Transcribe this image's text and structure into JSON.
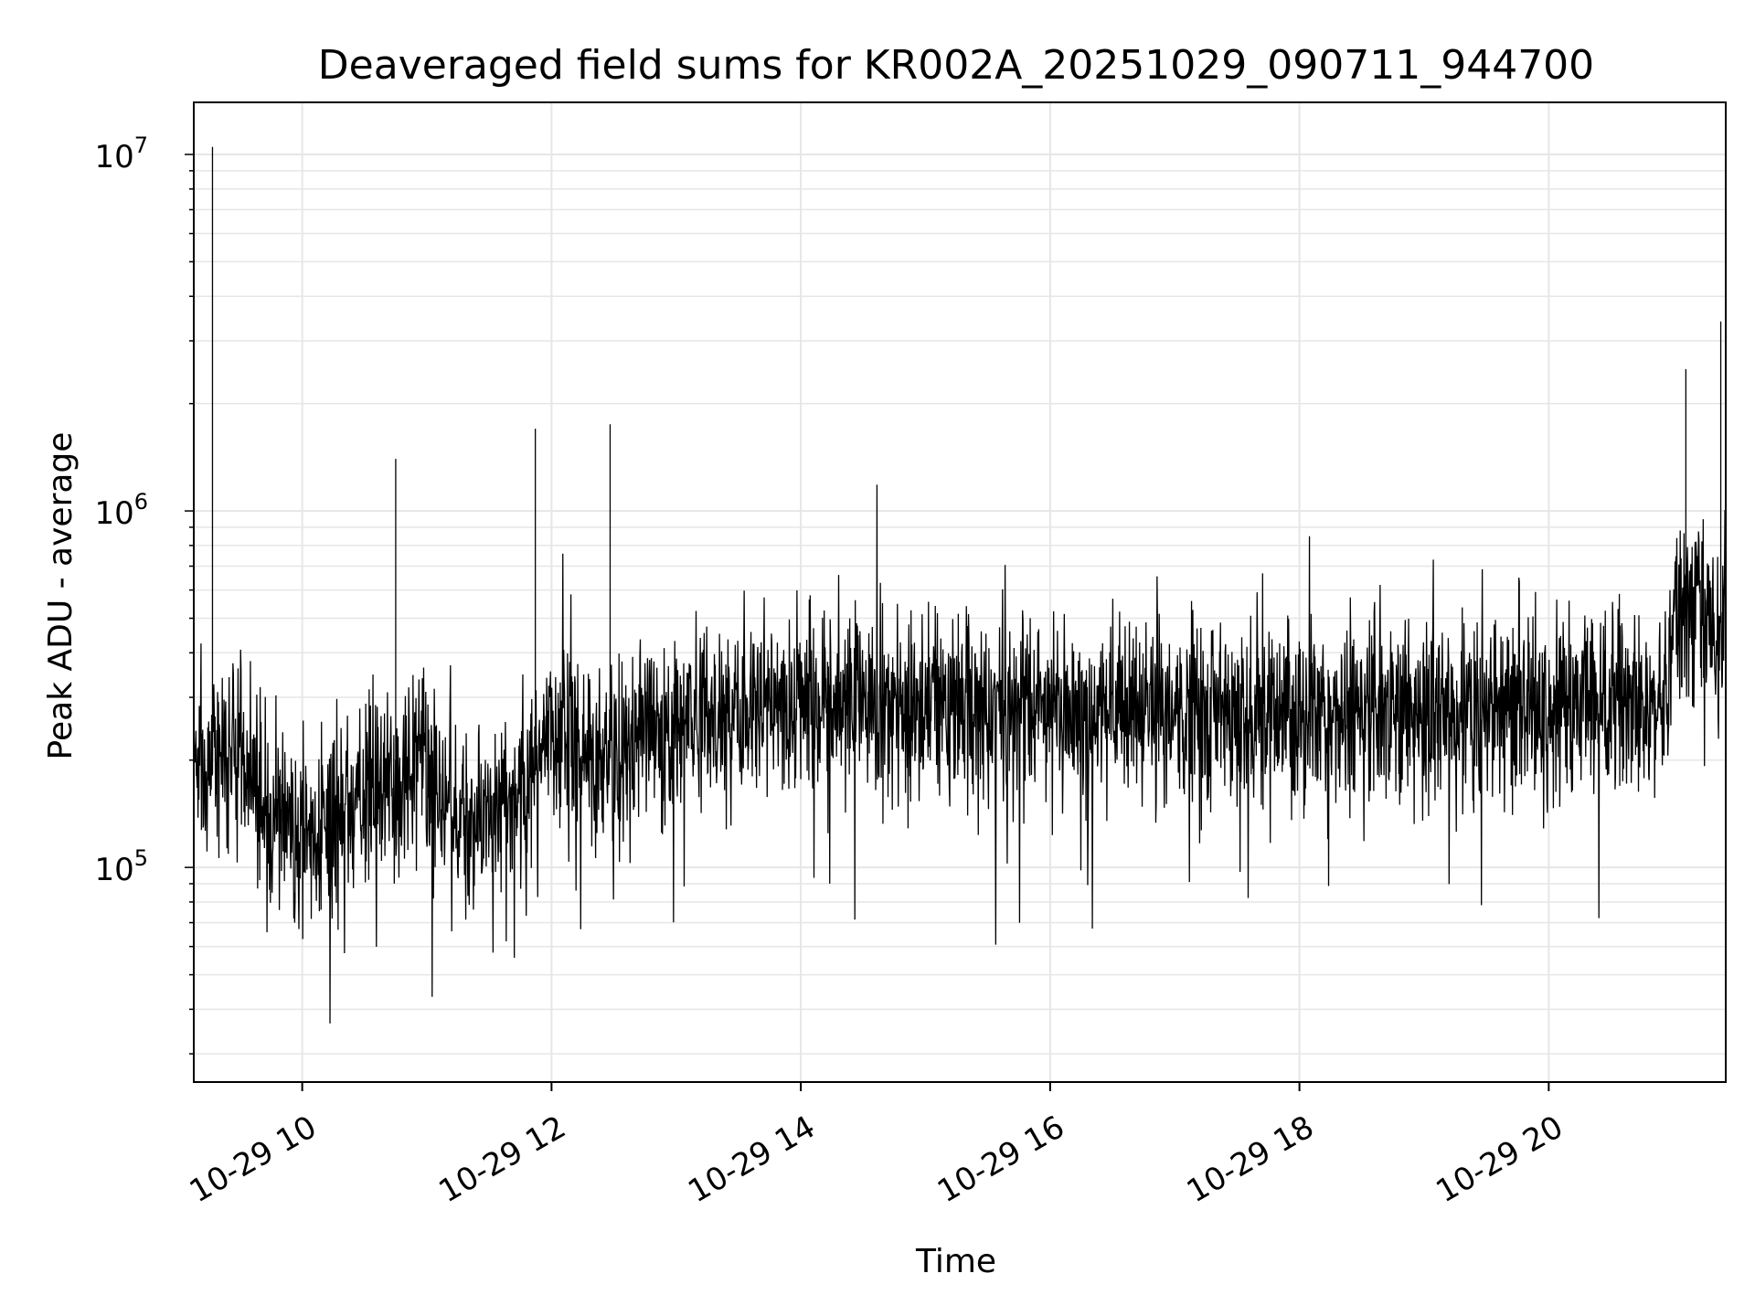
{
  "chart_data": {
    "type": "line",
    "title": "Deaveraged field sums for KR002A_20251029_090711_944700",
    "xlabel": "Time",
    "ylabel": "Peak ADU - average",
    "yscale": "log",
    "ylim": [
      25000,
      14000000
    ],
    "xlim_hours": [
      9.13,
      21.42
    ],
    "grid": true,
    "x_ticks": [
      {
        "label": "10-29 10",
        "hour": 10
      },
      {
        "label": "10-29 12",
        "hour": 12
      },
      {
        "label": "10-29 14",
        "hour": 14
      },
      {
        "label": "10-29 16",
        "hour": 16
      },
      {
        "label": "10-29 18",
        "hour": 18
      },
      {
        "label": "10-29 20",
        "hour": 20
      }
    ],
    "y_ticks": [
      {
        "base": "10",
        "exp": "5",
        "value": 100000
      },
      {
        "base": "10",
        "exp": "6",
        "value": 1000000
      },
      {
        "base": "10",
        "exp": "7",
        "value": 10000000
      }
    ],
    "line_color": "#000000",
    "grid_color": "#e6e6e6",
    "series": [
      {
        "name": "field sums",
        "baseline_segments": [
          {
            "hour": 9.13,
            "median": 220000
          },
          {
            "hour": 9.5,
            "median": 200000
          },
          {
            "hour": 9.9,
            "median": 120000
          },
          {
            "hour": 10.5,
            "median": 150000
          },
          {
            "hour": 11.0,
            "median": 190000
          },
          {
            "hour": 11.3,
            "median": 130000
          },
          {
            "hour": 11.8,
            "median": 170000
          },
          {
            "hour": 12.0,
            "median": 250000
          },
          {
            "hour": 12.5,
            "median": 200000
          },
          {
            "hour": 13.0,
            "median": 260000
          },
          {
            "hour": 14.0,
            "median": 290000
          },
          {
            "hour": 16.0,
            "median": 280000
          },
          {
            "hour": 18.0,
            "median": 270000
          },
          {
            "hour": 20.0,
            "median": 280000
          },
          {
            "hour": 20.95,
            "median": 290000
          },
          {
            "hour": 21.0,
            "median": 500000
          },
          {
            "hour": 21.42,
            "median": 500000
          }
        ],
        "spikes": [
          {
            "hour": 9.28,
            "value": 10500000
          },
          {
            "hour": 11.87,
            "value": 1700000
          },
          {
            "hour": 12.47,
            "value": 1750000
          },
          {
            "hour": 10.75,
            "value": 1400000
          },
          {
            "hour": 21.1,
            "value": 2500000
          },
          {
            "hour": 21.38,
            "value": 3400000
          }
        ]
      }
    ]
  }
}
